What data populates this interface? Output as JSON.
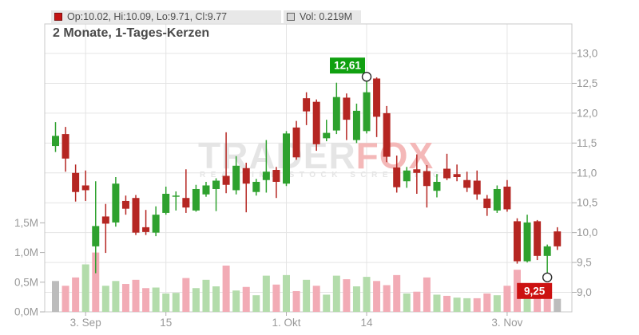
{
  "title": "2 Monate, 1-Tages-Kerzen",
  "legend": {
    "ohlc": {
      "label": "Op:10.02, Hi:10.09, Lo:9.71, Cl:9.77"
    },
    "volume": {
      "label": "Vol: 0.219M"
    }
  },
  "watermark": {
    "brand_primary": "TRADER",
    "brand_accent": "FOX",
    "subtitle": "REALTIME STOCK SCREENING"
  },
  "colors": {
    "candle_up": "#2ea12e",
    "candle_down": "#b52622",
    "volume_up": "#b3dcab",
    "volume_down": "#f2abb5",
    "volume_neutral": "#bcbcbc",
    "grid": "#e4e4e4",
    "frame": "#c9c9c9",
    "tick": "#b0b0b0",
    "axis_text": "#999999",
    "annotation_high_bg": "#10a010",
    "annotation_low_bg": "#cc1111",
    "annotation_text": "#ffffff",
    "watermark_gray": "#e5e5e5",
    "watermark_red": "#f4b8b8",
    "marker_circle": "#2b2b2b",
    "legend_ohlc_swatch": "#c41414",
    "legend_ohlc_swatch_border": "#7d1010",
    "legend_vol_swatch": "#d6d6d6",
    "legend_vol_swatch_border": "#5f5f5f"
  },
  "chart_data": {
    "type": "candlestick",
    "title": "2 Monate, 1-Tages-Kerzen",
    "price_axis": {
      "side": "right",
      "min": 8.7,
      "max": 13.5,
      "tick_step": 0.5
    },
    "volume_axis": {
      "side": "left",
      "min": 0,
      "max": 1.5,
      "unit": "M"
    },
    "price_ticks": [
      {
        "label": "13,0",
        "value": 13.0
      },
      {
        "label": "12,5",
        "value": 12.5
      },
      {
        "label": "12,0",
        "value": 12.0
      },
      {
        "label": "11,5",
        "value": 11.5
      },
      {
        "label": "11,0",
        "value": 11.0
      },
      {
        "label": "10,5",
        "value": 10.5
      },
      {
        "label": "10,0",
        "value": 10.0
      },
      {
        "label": "9,5",
        "value": 9.5
      },
      {
        "label": "9,0",
        "value": 9.0
      }
    ],
    "volume_ticks": [
      {
        "label": "1,5M",
        "value": 1.5
      },
      {
        "label": "1,0M",
        "value": 1.0
      },
      {
        "label": "0,5M",
        "value": 0.5
      },
      {
        "label": "0,0M",
        "value": 0.0
      }
    ],
    "x_ticks": [
      {
        "label": "3. Sep",
        "index": 3
      },
      {
        "label": "15",
        "index": 11
      },
      {
        "label": "1. Okt",
        "index": 23
      },
      {
        "label": "14",
        "index": 31
      },
      {
        "label": "3. Nov",
        "index": 45
      }
    ],
    "candles_columns": [
      "open",
      "high",
      "low",
      "close",
      "volume_m",
      "volume_color"
    ],
    "volume_color_legend": {
      "g": "up",
      "r": "down",
      "n": "neutral"
    },
    "candles": [
      [
        11.45,
        11.85,
        11.35,
        11.62,
        0.52,
        "n"
      ],
      [
        11.65,
        11.77,
        11.02,
        11.24,
        0.44,
        "r"
      ],
      [
        11.0,
        11.14,
        10.52,
        10.68,
        0.58,
        "r"
      ],
      [
        10.79,
        11.04,
        10.53,
        10.71,
        0.8,
        "g"
      ],
      [
        9.77,
        10.86,
        9.32,
        10.11,
        1.0,
        "r"
      ],
      [
        10.27,
        10.48,
        9.66,
        10.15,
        0.44,
        "g"
      ],
      [
        10.17,
        10.93,
        10.1,
        10.82,
        0.52,
        "g"
      ],
      [
        10.53,
        10.62,
        10.3,
        10.4,
        0.47,
        "r"
      ],
      [
        10.58,
        10.63,
        9.96,
        10.0,
        0.54,
        "r"
      ],
      [
        10.09,
        10.38,
        9.96,
        10.01,
        0.4,
        "r"
      ],
      [
        10.0,
        10.44,
        9.94,
        10.3,
        0.41,
        "g"
      ],
      [
        10.33,
        10.77,
        10.3,
        10.65,
        0.31,
        "g"
      ],
      [
        10.6,
        10.69,
        10.37,
        10.62,
        0.32,
        "g"
      ],
      [
        10.58,
        11.06,
        10.33,
        10.42,
        0.57,
        "r"
      ],
      [
        10.37,
        10.8,
        10.35,
        10.73,
        0.4,
        "g"
      ],
      [
        10.64,
        10.85,
        10.6,
        10.79,
        0.54,
        "g"
      ],
      [
        10.73,
        10.91,
        10.36,
        10.87,
        0.43,
        "g"
      ],
      [
        10.95,
        11.68,
        10.66,
        10.8,
        0.78,
        "r"
      ],
      [
        10.71,
        11.28,
        10.64,
        11.12,
        0.36,
        "g"
      ],
      [
        11.08,
        11.17,
        10.34,
        10.82,
        0.42,
        "r"
      ],
      [
        10.68,
        10.9,
        10.62,
        10.85,
        0.28,
        "g"
      ],
      [
        10.88,
        11.55,
        10.67,
        11.02,
        0.61,
        "g"
      ],
      [
        11.05,
        11.1,
        10.58,
        10.85,
        0.46,
        "r"
      ],
      [
        10.82,
        11.7,
        10.78,
        11.66,
        0.62,
        "g"
      ],
      [
        11.76,
        11.87,
        11.22,
        11.26,
        0.35,
        "r"
      ],
      [
        12.25,
        12.35,
        11.8,
        12.03,
        0.54,
        "g"
      ],
      [
        12.19,
        12.23,
        11.37,
        11.48,
        0.44,
        "r"
      ],
      [
        11.58,
        11.89,
        11.53,
        11.67,
        0.29,
        "g"
      ],
      [
        11.71,
        12.51,
        11.65,
        12.27,
        0.61,
        "g"
      ],
      [
        12.26,
        12.33,
        11.55,
        11.89,
        0.55,
        "r"
      ],
      [
        11.55,
        12.16,
        11.5,
        12.04,
        0.43,
        "g"
      ],
      [
        11.7,
        12.61,
        11.66,
        12.35,
        0.59,
        "g"
      ],
      [
        12.58,
        12.6,
        11.6,
        11.94,
        0.52,
        "r"
      ],
      [
        12.0,
        12.12,
        11.18,
        11.27,
        0.45,
        "r"
      ],
      [
        11.09,
        11.29,
        10.67,
        10.76,
        0.62,
        "r"
      ],
      [
        10.86,
        11.1,
        10.75,
        11.04,
        0.31,
        "g"
      ],
      [
        11.06,
        11.31,
        10.65,
        11.0,
        0.34,
        "r"
      ],
      [
        11.03,
        11.13,
        10.42,
        10.78,
        0.58,
        "r"
      ],
      [
        10.7,
        10.98,
        10.59,
        10.85,
        0.29,
        "g"
      ],
      [
        11.07,
        11.32,
        10.88,
        10.91,
        0.27,
        "r"
      ],
      [
        10.98,
        11.14,
        10.86,
        10.93,
        0.24,
        "g"
      ],
      [
        10.88,
        11.02,
        10.68,
        10.75,
        0.23,
        "g"
      ],
      [
        10.87,
        11.04,
        10.55,
        10.64,
        0.23,
        "r"
      ],
      [
        10.57,
        10.63,
        10.28,
        10.41,
        0.31,
        "r"
      ],
      [
        10.37,
        10.79,
        10.33,
        10.73,
        0.28,
        "g"
      ],
      [
        10.77,
        10.88,
        10.35,
        10.39,
        0.44,
        "r"
      ],
      [
        10.19,
        10.24,
        9.48,
        9.52,
        0.71,
        "r"
      ],
      [
        9.52,
        10.3,
        9.5,
        10.17,
        0.48,
        "g"
      ],
      [
        10.19,
        10.21,
        9.54,
        9.61,
        0.45,
        "r"
      ],
      [
        9.61,
        9.8,
        9.25,
        9.77,
        0.41,
        "r"
      ],
      [
        10.02,
        10.09,
        9.71,
        9.77,
        0.219,
        "n"
      ]
    ],
    "markers": [
      {
        "id": "high",
        "text": "12,61",
        "value": 12.61,
        "index": 31
      },
      {
        "id": "low",
        "text": "9,25",
        "value": 9.25,
        "index": 49
      }
    ]
  }
}
